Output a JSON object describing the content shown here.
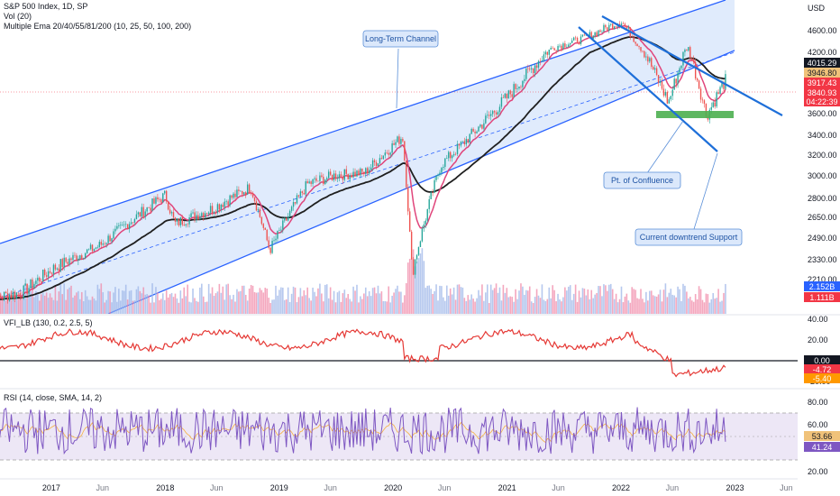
{
  "legend": {
    "main_title": "S&P 500 Index, 1D, SP",
    "vol": "Vol (20)",
    "ema": "Multiple Ema 20/40/55/81/200 (10, 25, 50, 100, 200)",
    "vfi": "VFI_LB (130, 0.2, 2.5, 5)",
    "rsi": "RSI (14, close, SMA, 14, 2)"
  },
  "colors": {
    "channel_fill": "#dbe8fb",
    "channel_line": "#2962ff",
    "trend_line": "#1e6fd9",
    "ema_fast": "#e0457b",
    "ema_slow": "#1f1f1f",
    "volume_up": "#9db6e8",
    "volume_down": "#f08aa8",
    "vfi_line": "#e53935",
    "rsi_line": "#7e57c2",
    "rsi_band": "#ede7f6",
    "support_box": "#4caf50",
    "price_red": "#f23645",
    "price_dark": "#131722"
  },
  "chart_data": [
    {
      "type": "line",
      "name": "price",
      "title": "S&P 500 Index, 1D, SP",
      "axis_label": "USD",
      "x": [
        "2016-06",
        "2016-10",
        "2017-01",
        "2017-06",
        "2018-01",
        "2018-02",
        "2018-06",
        "2018-10",
        "2018-12",
        "2019-04",
        "2019-07",
        "2019-10",
        "2020-02",
        "2020-03",
        "2020-06",
        "2020-09",
        "2021-01",
        "2021-06",
        "2021-09",
        "2022-01",
        "2022-03",
        "2022-06",
        "2022-08",
        "2022-10",
        "2022-12"
      ],
      "series": [
        {
          "values": [
            2100,
            2140,
            2270,
            2430,
            2830,
            2600,
            2720,
            2900,
            2400,
            2930,
            3010,
            3030,
            3390,
            2240,
            3100,
            3380,
            3750,
            4300,
            4450,
            4780,
            4300,
            3700,
            4300,
            3580,
            3917
          ]
        }
      ],
      "y_ticks": [
        "4600.00",
        "4200.00",
        "3800.00",
        "3600.00",
        "3400.00",
        "3200.00",
        "3000.00",
        "2800.00",
        "2650.00",
        "2490.00",
        "2330.00",
        "2210.00"
      ],
      "x_ticks": [
        "2017",
        "Jun",
        "2018",
        "Jun",
        "2019",
        "Jun",
        "2020",
        "Jun",
        "2021",
        "Jun",
        "2022",
        "Jun",
        "2023",
        "Jun"
      ],
      "price_labels": [
        {
          "text": "4015.29",
          "style": "dark"
        },
        {
          "text": "3946.80",
          "style": "tan"
        },
        {
          "text": "3917.43",
          "style": "red"
        },
        {
          "text": "3840.93",
          "style": "red"
        },
        {
          "text": "04:22:39",
          "style": "red"
        }
      ],
      "volume_labels": [
        {
          "text": "2.152B",
          "style": "blue"
        },
        {
          "text": "1.111B",
          "style": "red"
        }
      ],
      "annotations": [
        {
          "text": "Long-Term Channel"
        },
        {
          "text": "Pt. of Confluence"
        },
        {
          "text": "Current downtrend Support"
        }
      ]
    },
    {
      "type": "line",
      "name": "vfi",
      "title": "VFI_LB (130, 0.2, 2.5, 5)",
      "y_ticks": [
        "40.00",
        "20.00",
        "-20.00"
      ],
      "values_labels": [
        {
          "text": "0.00",
          "style": "dark"
        },
        {
          "text": "-4.72",
          "style": "red"
        },
        {
          "text": "-5.40",
          "style": "orange"
        }
      ]
    },
    {
      "type": "line",
      "name": "rsi",
      "title": "RSI (14, close, SMA, 14, 2)",
      "y_ticks": [
        "80.00",
        "60.00",
        "20.00"
      ],
      "values_labels": [
        {
          "text": "53.66",
          "style": "tan"
        },
        {
          "text": "41.24",
          "style": "purple"
        }
      ],
      "bands": [
        30,
        70
      ]
    }
  ]
}
